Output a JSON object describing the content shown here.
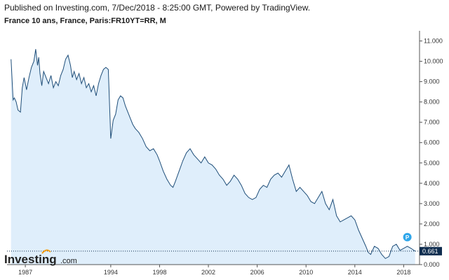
{
  "header": {
    "published": "Published on Investing.com, 7/Dec/2018 - 8:25:00 GMT, Powered by TradingView.",
    "symbol": "France 10 ans, France, Paris:FR10YT=RR, M"
  },
  "branding": {
    "logo_main": "Investing",
    "logo_suffix": ".com"
  },
  "marker": {
    "label": "P"
  },
  "colors": {
    "line": "#1f4e79",
    "fill": "#dfeefb",
    "price_label_bg": "#0f2d4f",
    "marker": "#2ea6ea",
    "axis": "#555555"
  },
  "chart_data": {
    "type": "line",
    "title": "France 10 ans, France, Paris:FR10YT=RR, M",
    "xlabel": "",
    "ylabel": "",
    "xlim": [
      1985.5,
      2019.3
    ],
    "ylim": [
      0,
      11.5
    ],
    "x_ticks": [
      {
        "value": 1987,
        "label": "1987"
      },
      {
        "value": 1994,
        "label": "1994"
      },
      {
        "value": 1998,
        "label": "1998"
      },
      {
        "value": 2002,
        "label": "2002"
      },
      {
        "value": 2006,
        "label": "2006"
      },
      {
        "value": 2010,
        "label": "2010"
      },
      {
        "value": 2014,
        "label": "2014"
      },
      {
        "value": 2018,
        "label": "2018"
      }
    ],
    "y_ticks": [
      {
        "value": 0,
        "label": "0.000"
      },
      {
        "value": 1,
        "label": "1.000"
      },
      {
        "value": 2,
        "label": "2.000"
      },
      {
        "value": 3,
        "label": "3.000"
      },
      {
        "value": 4,
        "label": "4.000"
      },
      {
        "value": 5,
        "label": "5.000"
      },
      {
        "value": 6,
        "label": "6.000"
      },
      {
        "value": 7,
        "label": "7.000"
      },
      {
        "value": 8,
        "label": "8.000"
      },
      {
        "value": 9,
        "label": "9.000"
      },
      {
        "value": 10,
        "label": "10.000"
      },
      {
        "value": 11,
        "label": "11.000"
      }
    ],
    "last_value": 0.661,
    "last_value_label": "0.661",
    "grid": false,
    "series": [
      {
        "x": [
          1985.83,
          1986.0,
          1986.1,
          1986.25,
          1986.4,
          1986.6,
          1986.75,
          1986.9,
          1987.1,
          1987.3,
          1987.5,
          1987.7,
          1987.85,
          1988.0,
          1988.1,
          1988.2,
          1988.35,
          1988.5,
          1988.7,
          1988.9,
          1989.1,
          1989.3,
          1989.5,
          1989.7,
          1989.9,
          1990.1,
          1990.3,
          1990.5,
          1990.7,
          1990.85,
          1991.0,
          1991.2,
          1991.4,
          1991.6,
          1991.8,
          1992.0,
          1992.2,
          1992.4,
          1992.6,
          1992.8,
          1993.0,
          1993.2,
          1993.4,
          1993.6,
          1993.8,
          1994.0,
          1994.2,
          1994.4,
          1994.6,
          1994.8,
          1995.0,
          1995.2,
          1995.4,
          1995.6,
          1995.8,
          1996.0,
          1996.3,
          1996.6,
          1996.9,
          1997.2,
          1997.5,
          1997.8,
          1998.0,
          1998.3,
          1998.6,
          1998.9,
          1999.1,
          1999.3,
          1999.6,
          1999.9,
          2000.2,
          2000.5,
          2000.8,
          2001.1,
          2001.4,
          2001.7,
          2002.0,
          2002.3,
          2002.6,
          2002.9,
          2003.2,
          2003.5,
          2003.8,
          2004.1,
          2004.4,
          2004.7,
          2005.0,
          2005.3,
          2005.6,
          2005.9,
          2006.2,
          2006.5,
          2006.8,
          2007.1,
          2007.4,
          2007.7,
          2008.0,
          2008.3,
          2008.6,
          2008.9,
          2009.2,
          2009.5,
          2009.8,
          2010.1,
          2010.4,
          2010.7,
          2011.0,
          2011.3,
          2011.6,
          2011.9,
          2012.2,
          2012.5,
          2012.8,
          2013.1,
          2013.4,
          2013.7,
          2014.0,
          2014.3,
          2014.6,
          2014.9,
          2015.1,
          2015.3,
          2015.6,
          2015.9,
          2016.2,
          2016.5,
          2016.8,
          2017.1,
          2017.4,
          2017.7,
          2018.0,
          2018.3,
          2018.6,
          2018.94
        ],
        "values": [
          10.1,
          8.1,
          8.2,
          8.0,
          7.6,
          7.5,
          8.7,
          9.2,
          8.6,
          9.2,
          9.7,
          10.0,
          10.6,
          9.8,
          10.2,
          9.4,
          8.8,
          9.5,
          9.2,
          8.9,
          9.3,
          8.7,
          9.0,
          8.8,
          9.3,
          9.6,
          10.1,
          10.3,
          9.8,
          9.2,
          9.5,
          9.1,
          9.4,
          8.9,
          9.2,
          8.7,
          8.9,
          8.5,
          8.8,
          8.3,
          8.9,
          9.3,
          9.6,
          9.7,
          9.6,
          6.2,
          7.1,
          7.4,
          8.1,
          8.3,
          8.2,
          7.8,
          7.5,
          7.2,
          6.9,
          6.7,
          6.5,
          6.2,
          5.8,
          5.6,
          5.7,
          5.4,
          5.1,
          4.6,
          4.2,
          3.9,
          3.8,
          4.1,
          4.6,
          5.1,
          5.5,
          5.7,
          5.4,
          5.2,
          5.0,
          5.3,
          5.0,
          4.9,
          4.7,
          4.4,
          4.2,
          3.9,
          4.1,
          4.4,
          4.2,
          3.9,
          3.5,
          3.3,
          3.2,
          3.3,
          3.7,
          3.9,
          3.8,
          4.2,
          4.4,
          4.5,
          4.3,
          4.6,
          4.9,
          4.2,
          3.6,
          3.8,
          3.6,
          3.4,
          3.1,
          3.0,
          3.3,
          3.6,
          3.0,
          2.7,
          3.2,
          2.4,
          2.1,
          2.2,
          2.3,
          2.4,
          2.2,
          1.7,
          1.3,
          0.9,
          0.6,
          0.5,
          0.9,
          0.8,
          0.5,
          0.3,
          0.4,
          0.9,
          1.0,
          0.7,
          0.8,
          0.9,
          0.8,
          0.661
        ]
      }
    ]
  }
}
